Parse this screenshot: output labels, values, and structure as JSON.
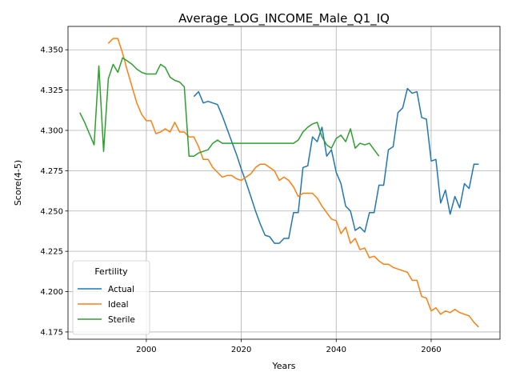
{
  "chart_data": {
    "type": "line",
    "title": "Average_LOG_INCOME_Male_Q1_IQ",
    "xlabel": "Years",
    "ylabel": "Score(4-5)",
    "xlim": [
      1983.5,
      2074.5
    ],
    "ylim": [
      4.1705,
      4.3645
    ],
    "xticks": [
      2000,
      2020,
      2040,
      2060
    ],
    "yticks": [
      4.175,
      4.2,
      4.225,
      4.25,
      4.275,
      4.3,
      4.325,
      4.35
    ],
    "ytick_labels": [
      "4.175",
      "4.200",
      "4.225",
      "4.250",
      "4.275",
      "4.300",
      "4.325",
      "4.350"
    ],
    "grid": true,
    "legend": {
      "title": "Fertility",
      "position": "lower-left"
    },
    "series": [
      {
        "name": "Actual",
        "color": "#1f77b4",
        "x": [
          2010,
          2011,
          2012,
          2013,
          2014,
          2015,
          2016,
          2017,
          2018,
          2019,
          2020,
          2021,
          2022,
          2023,
          2024,
          2025,
          2026,
          2027,
          2028,
          2029,
          2030,
          2031,
          2032,
          2033,
          2034,
          2035,
          2036,
          2037,
          2038,
          2039,
          2040,
          2041,
          2042,
          2043,
          2044,
          2045,
          2046,
          2047,
          2048,
          2049,
          2050,
          2051,
          2052,
          2053,
          2054,
          2055,
          2056,
          2057,
          2058,
          2059,
          2060,
          2061,
          2062,
          2063,
          2064,
          2065,
          2066,
          2067,
          2068,
          2069,
          2070
        ],
        "y": [
          4.321,
          4.324,
          4.317,
          4.318,
          4.317,
          4.316,
          4.309,
          4.301,
          4.293,
          4.285,
          4.276,
          4.268,
          4.259,
          4.25,
          4.242,
          4.235,
          4.234,
          4.23,
          4.23,
          4.233,
          4.233,
          4.249,
          4.249,
          4.277,
          4.278,
          4.296,
          4.293,
          4.302,
          4.284,
          4.288,
          4.274,
          4.267,
          4.253,
          4.25,
          4.238,
          4.24,
          4.237,
          4.249,
          4.249,
          4.266,
          4.266,
          4.288,
          4.29,
          4.311,
          4.314,
          4.326,
          4.323,
          4.324,
          4.308,
          4.307,
          4.281,
          4.282,
          4.255,
          4.263,
          4.248,
          4.259,
          4.252,
          4.267,
          4.264,
          4.279,
          4.279
        ]
      },
      {
        "name": "Ideal",
        "color": "#ff7f0e",
        "x": [
          1992,
          1993,
          1994,
          1995,
          1996,
          1997,
          1998,
          1999,
          2000,
          2001,
          2002,
          2003,
          2004,
          2005,
          2006,
          2007,
          2008,
          2009,
          2010,
          2011,
          2012,
          2013,
          2014,
          2015,
          2016,
          2017,
          2018,
          2019,
          2020,
          2021,
          2022,
          2023,
          2024,
          2025,
          2026,
          2027,
          2028,
          2029,
          2030,
          2031,
          2032,
          2033,
          2034,
          2035,
          2036,
          2037,
          2038,
          2039,
          2040,
          2041,
          2042,
          2043,
          2044,
          2045,
          2046,
          2047,
          2048,
          2049,
          2050,
          2051,
          2052,
          2053,
          2054,
          2055,
          2056,
          2057,
          2058,
          2059,
          2060,
          2061,
          2062,
          2063,
          2064,
          2065,
          2066,
          2067,
          2068,
          2069,
          2070
        ],
        "y": [
          4.354,
          4.357,
          4.357,
          4.348,
          4.337,
          4.327,
          4.317,
          4.31,
          4.306,
          4.306,
          4.298,
          4.299,
          4.301,
          4.299,
          4.305,
          4.299,
          4.299,
          4.296,
          4.296,
          4.29,
          4.282,
          4.282,
          4.277,
          4.274,
          4.271,
          4.272,
          4.272,
          4.27,
          4.269,
          4.271,
          4.273,
          4.277,
          4.279,
          4.279,
          4.277,
          4.275,
          4.269,
          4.271,
          4.269,
          4.265,
          4.259,
          4.261,
          4.261,
          4.261,
          4.258,
          4.253,
          4.249,
          4.245,
          4.244,
          4.236,
          4.24,
          4.23,
          4.233,
          4.226,
          4.227,
          4.221,
          4.222,
          4.219,
          4.217,
          4.217,
          4.215,
          4.214,
          4.213,
          4.212,
          4.207,
          4.207,
          4.197,
          4.196,
          4.188,
          4.19,
          4.186,
          4.188,
          4.187,
          4.189,
          4.187,
          4.186,
          4.185,
          4.181,
          4.178
        ]
      },
      {
        "name": "Sterile",
        "color": "#2ca02c",
        "x": [
          1986,
          1987,
          1988,
          1989,
          1990,
          1991,
          1992,
          1993,
          1994,
          1995,
          1996,
          1997,
          1998,
          1999,
          2000,
          2001,
          2002,
          2003,
          2004,
          2005,
          2006,
          2007,
          2008,
          2009,
          2010,
          2011,
          2012,
          2013,
          2014,
          2015,
          2016,
          2017,
          2018,
          2019,
          2020,
          2021,
          2022,
          2023,
          2024,
          2025,
          2026,
          2027,
          2028,
          2029,
          2030,
          2031,
          2032,
          2033,
          2034,
          2035,
          2036,
          2037,
          2038,
          2039,
          2040,
          2041,
          2042,
          2043,
          2044,
          2045,
          2046,
          2047,
          2048,
          2049
        ],
        "y": [
          4.311,
          4.305,
          4.298,
          4.291,
          4.34,
          4.287,
          4.332,
          4.341,
          4.336,
          4.345,
          4.343,
          4.341,
          4.338,
          4.336,
          4.335,
          4.335,
          4.335,
          4.341,
          4.339,
          4.333,
          4.331,
          4.33,
          4.327,
          4.284,
          4.284,
          4.286,
          4.287,
          4.288,
          4.292,
          4.294,
          4.292,
          4.292,
          4.292,
          4.292,
          4.292,
          4.292,
          4.292,
          4.292,
          4.292,
          4.292,
          4.292,
          4.292,
          4.292,
          4.292,
          4.292,
          4.292,
          4.294,
          4.299,
          4.302,
          4.304,
          4.305,
          4.296,
          4.291,
          4.289,
          4.295,
          4.297,
          4.293,
          4.301,
          4.289,
          4.292,
          4.291,
          4.292,
          4.288,
          4.284
        ]
      }
    ]
  }
}
